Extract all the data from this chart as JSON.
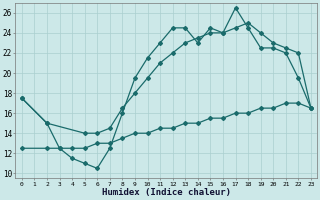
{
  "xlabel": "Humidex (Indice chaleur)",
  "ylabel": "",
  "bg_color": "#cce8e8",
  "line_color": "#1a6b6b",
  "grid_color": "#aacfcf",
  "xlim": [
    -0.5,
    23.5
  ],
  "ylim": [
    9.5,
    27.0
  ],
  "xticks": [
    0,
    1,
    2,
    3,
    4,
    5,
    6,
    7,
    8,
    9,
    10,
    11,
    12,
    13,
    14,
    15,
    16,
    17,
    18,
    19,
    20,
    21,
    22,
    23
  ],
  "yticks": [
    10,
    12,
    14,
    16,
    18,
    20,
    22,
    24,
    26
  ],
  "line1_x": [
    0,
    2,
    3,
    4,
    5,
    6,
    7,
    8,
    9,
    10,
    11,
    12,
    13,
    14,
    15,
    16,
    17,
    18,
    19,
    20,
    21,
    22,
    23
  ],
  "line1_y": [
    17.5,
    15.0,
    12.5,
    11.5,
    11.0,
    10.5,
    12.5,
    16.0,
    19.5,
    21.5,
    23.0,
    24.5,
    24.5,
    23.0,
    24.5,
    24.0,
    26.5,
    24.5,
    22.5,
    22.5,
    22.0,
    19.5,
    16.5
  ],
  "line2_x": [
    0,
    2,
    5,
    6,
    7,
    8,
    9,
    10,
    11,
    12,
    13,
    14,
    15,
    16,
    17,
    18,
    19,
    20,
    21,
    22,
    23
  ],
  "line2_y": [
    17.5,
    15.0,
    14.0,
    14.0,
    14.5,
    16.5,
    18.0,
    19.5,
    21.0,
    22.0,
    23.0,
    23.5,
    24.0,
    24.0,
    24.5,
    25.0,
    24.0,
    23.0,
    22.5,
    22.0,
    16.5
  ],
  "line3_x": [
    0,
    2,
    3,
    4,
    5,
    6,
    7,
    8,
    9,
    10,
    11,
    12,
    13,
    14,
    15,
    16,
    17,
    18,
    19,
    20,
    21,
    22,
    23
  ],
  "line3_y": [
    12.5,
    12.5,
    12.5,
    12.5,
    12.5,
    13.0,
    13.0,
    13.5,
    14.0,
    14.0,
    14.5,
    14.5,
    15.0,
    15.0,
    15.5,
    15.5,
    16.0,
    16.0,
    16.5,
    16.5,
    17.0,
    17.0,
    16.5
  ]
}
